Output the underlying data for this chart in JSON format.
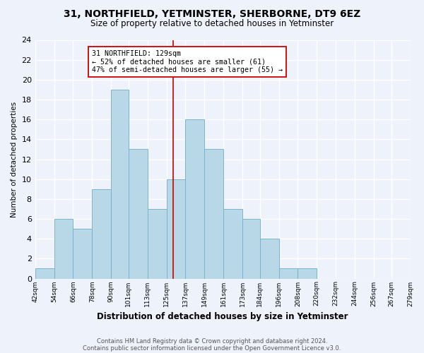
{
  "title": "31, NORTHFIELD, YETMINSTER, SHERBORNE, DT9 6EZ",
  "subtitle": "Size of property relative to detached houses in Yetminster",
  "xlabel": "Distribution of detached houses by size in Yetminster",
  "ylabel": "Number of detached properties",
  "bin_edges": [
    42,
    54,
    66,
    78,
    90,
    101,
    113,
    125,
    137,
    149,
    161,
    173,
    184,
    196,
    208,
    220,
    232,
    244,
    256,
    267,
    279
  ],
  "bar_heights": [
    1,
    6,
    5,
    9,
    19,
    13,
    7,
    10,
    16,
    13,
    7,
    6,
    4,
    1,
    1,
    0,
    0,
    0,
    0,
    0
  ],
  "bar_color": "#b8d8e8",
  "bar_edgecolor": "#7ab4cc",
  "property_size": 129,
  "vline_color": "#cc0000",
  "annotation_text": "31 NORTHFIELD: 129sqm\n← 52% of detached houses are smaller (61)\n47% of semi-detached houses are larger (55) →",
  "annotation_box_edgecolor": "#cc0000",
  "annotation_box_facecolor": "#ffffff",
  "ylim": [
    0,
    24
  ],
  "yticks": [
    0,
    2,
    4,
    6,
    8,
    10,
    12,
    14,
    16,
    18,
    20,
    22,
    24
  ],
  "footer_line1": "Contains HM Land Registry data © Crown copyright and database right 2024.",
  "footer_line2": "Contains public sector information licensed under the Open Government Licence v3.0.",
  "background_color": "#eef2fb",
  "grid_color": "#ffffff",
  "tick_labels": [
    "42sqm",
    "54sqm",
    "66sqm",
    "78sqm",
    "90sqm",
    "101sqm",
    "113sqm",
    "125sqm",
    "137sqm",
    "149sqm",
    "161sqm",
    "173sqm",
    "184sqm",
    "196sqm",
    "208sqm",
    "220sqm",
    "232sqm",
    "244sqm",
    "256sqm",
    "267sqm",
    "279sqm"
  ]
}
